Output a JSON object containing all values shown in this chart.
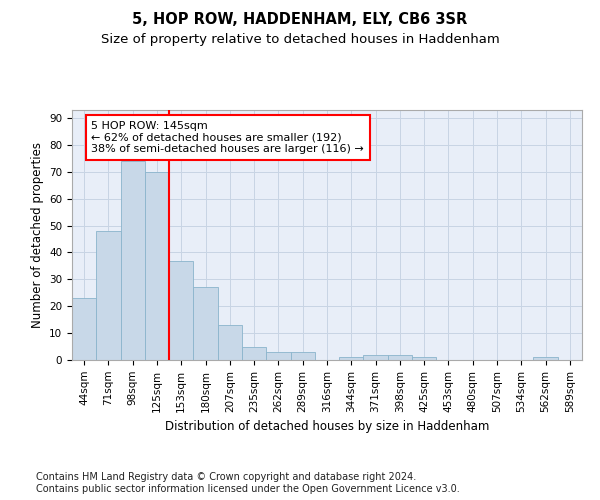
{
  "title1": "5, HOP ROW, HADDENHAM, ELY, CB6 3SR",
  "title2": "Size of property relative to detached houses in Haddenham",
  "xlabel": "Distribution of detached houses by size in Haddenham",
  "ylabel": "Number of detached properties",
  "categories": [
    "44sqm",
    "71sqm",
    "98sqm",
    "125sqm",
    "153sqm",
    "180sqm",
    "207sqm",
    "235sqm",
    "262sqm",
    "289sqm",
    "316sqm",
    "344sqm",
    "371sqm",
    "398sqm",
    "425sqm",
    "453sqm",
    "480sqm",
    "507sqm",
    "534sqm",
    "562sqm",
    "589sqm"
  ],
  "values": [
    23,
    48,
    74,
    70,
    37,
    27,
    13,
    5,
    3,
    3,
    0,
    1,
    2,
    2,
    1,
    0,
    0,
    0,
    0,
    1,
    0
  ],
  "bar_color": "#c8d8e8",
  "bar_edge_color": "#8ab4cc",
  "grid_color": "#c8d4e4",
  "background_color": "#e8eef8",
  "vline_color": "red",
  "vline_pos": 3.5,
  "annotation_text": "5 HOP ROW: 145sqm\n← 62% of detached houses are smaller (192)\n38% of semi-detached houses are larger (116) →",
  "annotation_box_color": "white",
  "annotation_box_edge": "red",
  "ylim": [
    0,
    93
  ],
  "yticks": [
    0,
    10,
    20,
    30,
    40,
    50,
    60,
    70,
    80,
    90
  ],
  "footer1": "Contains HM Land Registry data © Crown copyright and database right 2024.",
  "footer2": "Contains public sector information licensed under the Open Government Licence v3.0.",
  "title1_fontsize": 10.5,
  "title2_fontsize": 9.5,
  "xlabel_fontsize": 8.5,
  "ylabel_fontsize": 8.5,
  "tick_fontsize": 7.5,
  "annotation_fontsize": 8,
  "footer_fontsize": 7
}
